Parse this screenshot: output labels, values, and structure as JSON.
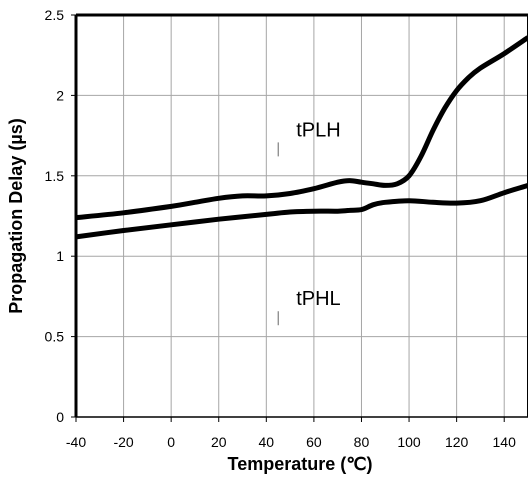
{
  "chart_data": {
    "type": "line",
    "title": "",
    "xlabel": "Temperature (℃)",
    "ylabel": "Propagation Delay (µs)",
    "xlim": [
      -40,
      150
    ],
    "ylim": [
      0,
      2.5
    ],
    "x_ticks": [
      -40,
      -20,
      0,
      20,
      40,
      60,
      80,
      100,
      120,
      140
    ],
    "y_ticks": [
      0,
      0.5,
      1,
      1.5,
      2,
      2.5
    ],
    "x_tick_labels": [
      "-40",
      "-20",
      "0",
      "20",
      "40",
      "60",
      "80",
      "100",
      "120",
      "140"
    ],
    "y_tick_labels": [
      "0",
      "0.5",
      "1",
      "1.5",
      "2",
      "2.5"
    ],
    "grid": true,
    "legend": "none",
    "series": [
      {
        "name": "tPLH",
        "x": [
          -40,
          -20,
          0,
          10,
          20,
          30,
          40,
          50,
          60,
          70,
          75,
          80,
          85,
          90,
          95,
          100,
          105,
          110,
          115,
          120,
          125,
          130,
          140,
          150
        ],
        "y": [
          1.24,
          1.27,
          1.31,
          1.335,
          1.36,
          1.375,
          1.375,
          1.39,
          1.42,
          1.46,
          1.47,
          1.46,
          1.45,
          1.44,
          1.45,
          1.5,
          1.62,
          1.78,
          1.92,
          2.03,
          2.11,
          2.17,
          2.26,
          2.36
        ],
        "color": "#000000"
      },
      {
        "name": "tPHL",
        "x": [
          -40,
          -20,
          0,
          20,
          40,
          50,
          60,
          70,
          75,
          80,
          85,
          90,
          100,
          110,
          120,
          130,
          140,
          150
        ],
        "y": [
          1.12,
          1.16,
          1.195,
          1.23,
          1.26,
          1.275,
          1.28,
          1.28,
          1.285,
          1.29,
          1.32,
          1.335,
          1.345,
          1.335,
          1.33,
          1.345,
          1.395,
          1.44
        ],
        "color": "#000000"
      }
    ],
    "annotations": [
      {
        "text": "tPLH",
        "series": "tPLH",
        "x": 45,
        "y": 1.77
      },
      {
        "text": "tPHL",
        "series": "tPHL",
        "x": 45,
        "y": 0.72
      }
    ]
  }
}
